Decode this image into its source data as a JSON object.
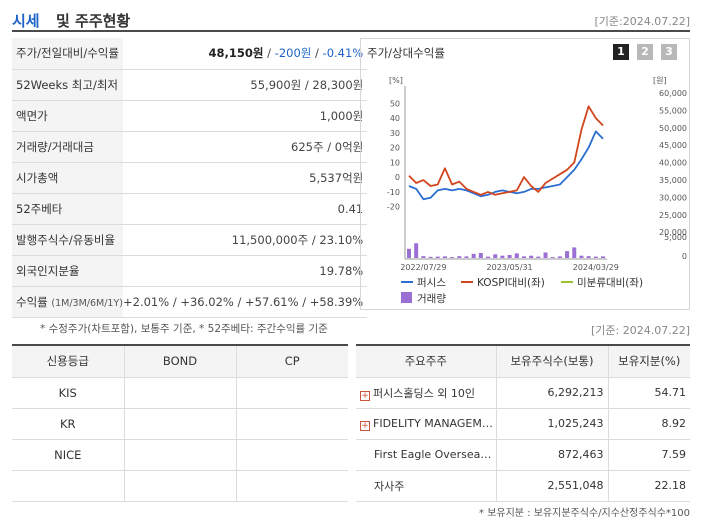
{
  "header": {
    "title_accent": "시세",
    "title_rest": "및 주주현황",
    "date": "[기준:2024.07.22]"
  },
  "price_table": [
    {
      "label": "주가/전일대비/수익률",
      "price": "48,150원",
      "change": "-200원",
      "rate": "-0.41%"
    },
    {
      "label": "52Weeks 최고/최저",
      "value": "55,900원 / 28,300원"
    },
    {
      "label": "액면가",
      "value": "1,000원"
    },
    {
      "label": "거래량/거래대금",
      "value": "625주 / 0억원"
    },
    {
      "label": "시가총액",
      "value": "5,537억원"
    },
    {
      "label": "52주베타",
      "value": "0.41"
    },
    {
      "label": "발행주식수/유동비율",
      "value": "11,500,000주 / 23.10%"
    },
    {
      "label": "외국인지분율",
      "value": "19.78%"
    },
    {
      "label": "수익률",
      "sub": "(1M/3M/6M/1Y)",
      "r1": "+2.01%",
      "r2": "+36.02%",
      "r3": "+57.61%",
      "r4": "+58.39%",
      "sep": " / "
    }
  ],
  "note1": "* 수정주가(차트포함), 보통주 기준, * 52주베타: 주간수익률 기준",
  "chart_panel": {
    "title": "주가/상대수익률",
    "pages": [
      "1",
      "2",
      "3"
    ],
    "active_page": 0,
    "colors": {
      "active": "#222222",
      "inactive": "#b8b8b8"
    }
  },
  "chart_data": {
    "type": "line",
    "left_unit": "[%]",
    "right_unit": "[원]",
    "left_ticks": [
      50,
      40,
      30,
      20,
      10,
      0,
      -10,
      -20
    ],
    "left_ticks_text": [
      "50",
      "40",
      "30",
      "20",
      "10",
      "0",
      "-10",
      "-20"
    ],
    "right_ticks": [
      60000,
      55000,
      50000,
      45000,
      40000,
      35000,
      30000,
      25000,
      20000
    ],
    "right_ticks_text": [
      "60,000",
      "55,000",
      "50,000",
      "45,000",
      "40,000",
      "35,000",
      "30,000",
      "25,000",
      "20,000"
    ],
    "vol_ticks_text": [
      "5,000",
      "0"
    ],
    "vol_ylim": [
      0,
      5000
    ],
    "ylim": [
      -25,
      55
    ],
    "x_labels": [
      "2022/07/29",
      "2023/05/31",
      "2024/03/29"
    ],
    "x_label_pos": [
      2,
      14,
      26
    ],
    "series": [
      {
        "name": "퍼시스",
        "color": "#2a6ed2",
        "values": [
          -6,
          -8,
          -15,
          -14,
          -9,
          -8,
          -9,
          -8,
          -9,
          -11,
          -13,
          -12,
          -10,
          -9,
          -10,
          -11,
          -10,
          -8,
          -8,
          -7,
          -6,
          -5,
          0,
          5,
          12,
          20,
          31,
          26
        ]
      },
      {
        "name": "KOSPI대비(좌)",
        "color": "#d2461e",
        "values": [
          1,
          -4,
          -2,
          -6,
          -5,
          6,
          -5,
          -3,
          -8,
          -10,
          -12,
          -10,
          -12,
          -11,
          -10,
          -9,
          0,
          -6,
          -10,
          -4,
          -1,
          2,
          5,
          10,
          32,
          48,
          40,
          35
        ]
      },
      {
        "name": "미분류대비(좌)",
        "color": "#9cc428",
        "values": []
      }
    ],
    "volume": {
      "name": "거래량",
      "color": "#9c6fd4",
      "values": [
        2000,
        3200,
        400,
        250,
        300,
        350,
        200,
        400,
        350,
        900,
        1100,
        300,
        800,
        500,
        650,
        1000,
        350,
        500,
        300,
        1200,
        200,
        350,
        1500,
        2300,
        500,
        400,
        300,
        350
      ]
    }
  },
  "credit_table": {
    "headers": [
      "신용등급",
      "BOND",
      "CP"
    ],
    "rows": [
      [
        "KIS",
        "",
        ""
      ],
      [
        "KR",
        "",
        ""
      ],
      [
        "NICE",
        "",
        ""
      ],
      [
        "",
        "",
        ""
      ]
    ]
  },
  "shareholder_date": "[기준: 2024.07.22]",
  "shareholder_table": {
    "headers": [
      "주요주주",
      "보유주식수(보통)",
      "보유지분(%)"
    ],
    "rows": [
      {
        "name": "퍼시스홀딩스 외 10인",
        "shares": "6,292,213",
        "pct": "54.71",
        "expand": true
      },
      {
        "name": "FIDELITY MANAGEM…",
        "shares": "1,025,243",
        "pct": "8.92",
        "expand": true
      },
      {
        "name": "First Eagle Overseas …",
        "shares": "872,463",
        "pct": "7.59",
        "expand": false
      },
      {
        "name": "자사주",
        "shares": "2,551,048",
        "pct": "22.18",
        "expand": false
      }
    ]
  },
  "note2": "* 보유지분 : 보유지분주식수/지수산정주식수*100"
}
